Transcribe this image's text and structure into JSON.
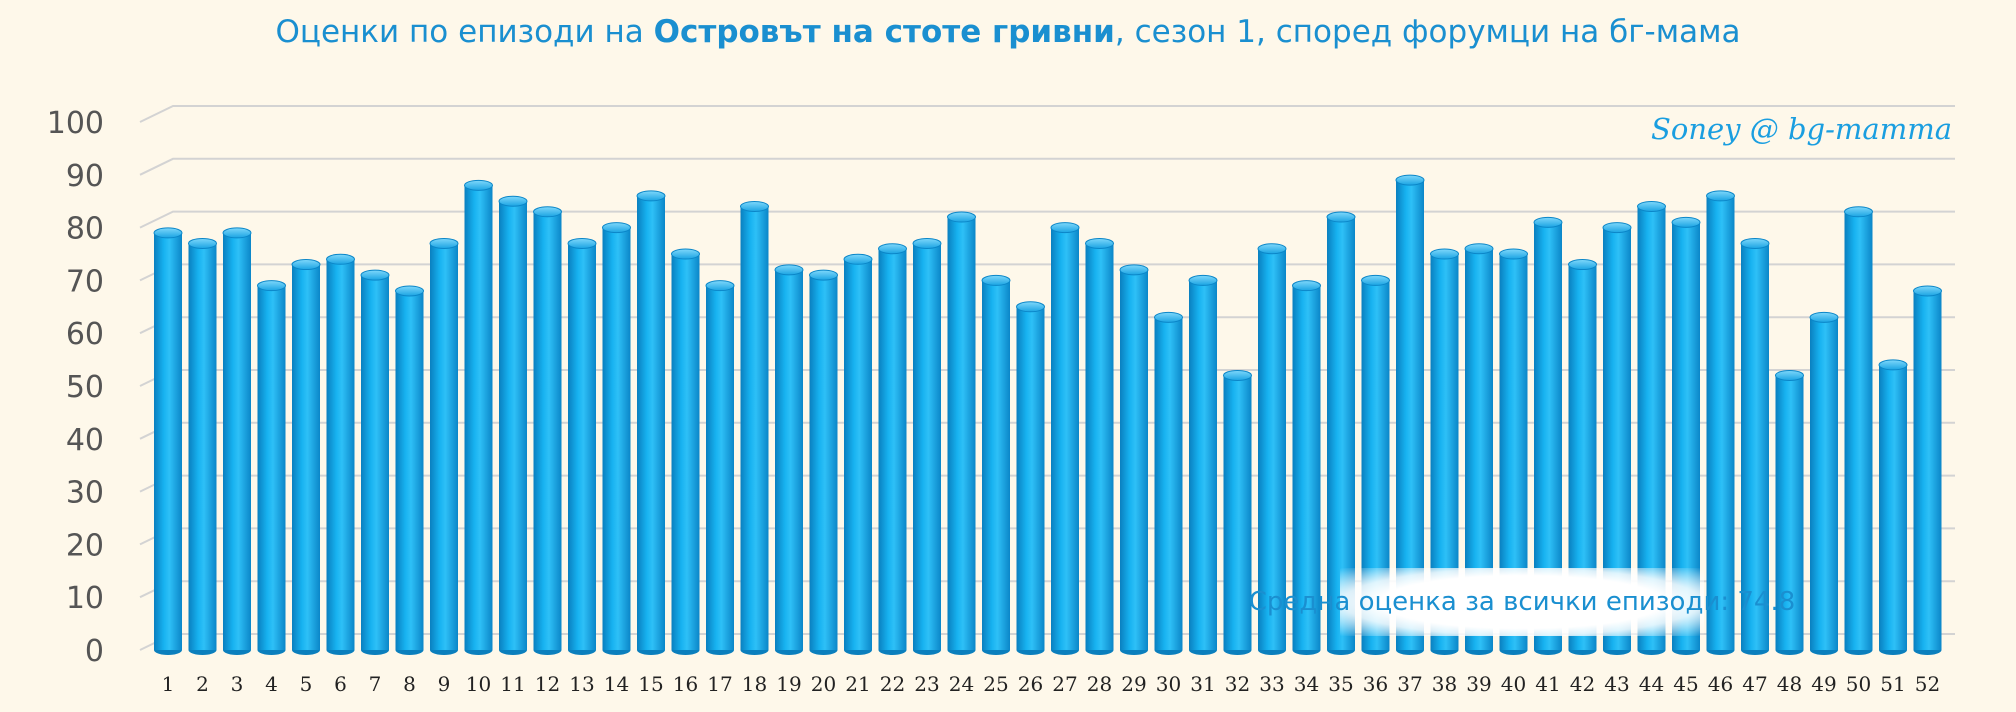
{
  "title": {
    "prefix": "Оценки по епизоди на ",
    "bold": "Островът на стоте гривни",
    "suffix": ", сезон 1,  според форумци на бг-мама"
  },
  "signature": "Soney @ bg-mamma",
  "average_label": "Средна оценка за всички епизоди: 74.8",
  "colors": {
    "bar": "#12a6e6",
    "background": "#fef8ea",
    "title": "#1a8fd0"
  },
  "chart_data": {
    "type": "bar",
    "categories": [
      "1",
      "2",
      "3",
      "4",
      "5",
      "6",
      "7",
      "8",
      "9",
      "10",
      "11",
      "12",
      "13",
      "14",
      "15",
      "16",
      "17",
      "18",
      "19",
      "20",
      "21",
      "22",
      "23",
      "24",
      "25",
      "26",
      "27",
      "28",
      "29",
      "30",
      "31",
      "32",
      "33",
      "34",
      "35",
      "36",
      "37",
      "38",
      "39",
      "40",
      "41",
      "42",
      "43",
      "44",
      "45",
      "46",
      "47",
      "48",
      "49",
      "50",
      "51",
      "52"
    ],
    "values": [
      79,
      77,
      79,
      69,
      73,
      74,
      71,
      68,
      77,
      88,
      85,
      83,
      77,
      80,
      86,
      75,
      69,
      84,
      72,
      71,
      74,
      76,
      77,
      82,
      70,
      65,
      80,
      77,
      72,
      63,
      70,
      52,
      76,
      69,
      82,
      70,
      89,
      75,
      76,
      75,
      81,
      73,
      80,
      84,
      81,
      86,
      77,
      52,
      63,
      83,
      54,
      68
    ],
    "ylim": [
      0,
      100
    ],
    "yticks": [
      "0",
      "10",
      "20",
      "30",
      "40",
      "50",
      "60",
      "70",
      "80",
      "90",
      "100"
    ],
    "grid": true,
    "style": "3d-cylinder"
  }
}
